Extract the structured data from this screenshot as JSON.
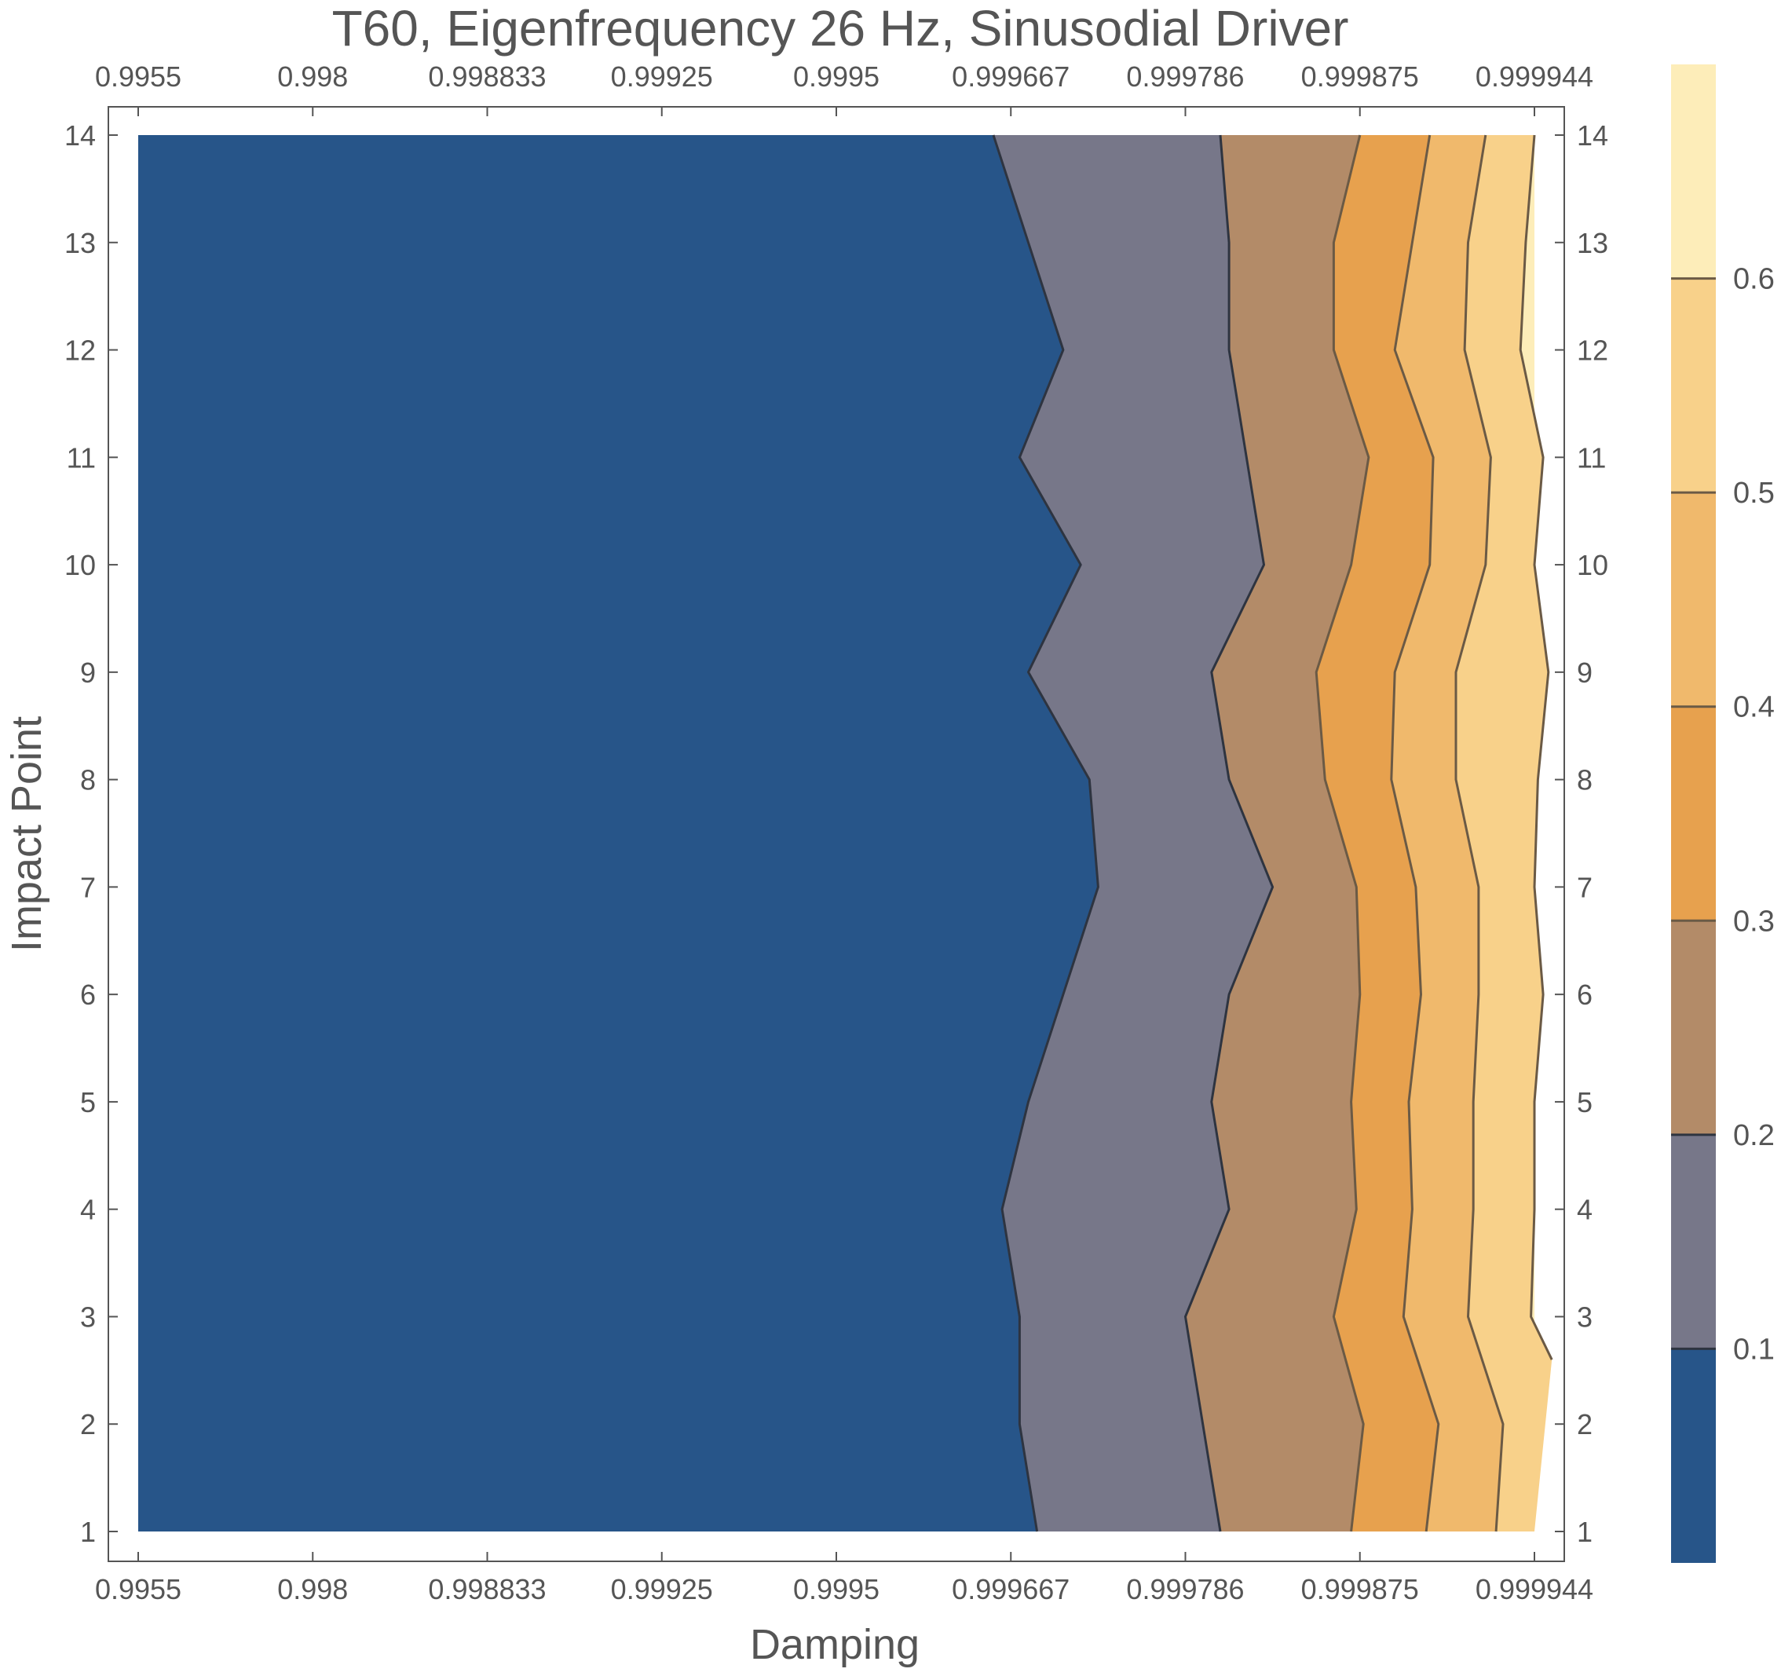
{
  "chart_data": {
    "type": "contour",
    "title": "T60, Eigenfrequency 26 Hz, Sinusodial Driver",
    "xlabel": "Damping",
    "ylabel": "Impact Point",
    "x_ticks": [
      "0.9955",
      "0.998",
      "0.998833",
      "0.99925",
      "0.9995",
      "0.999667",
      "0.999786",
      "0.999875",
      "0.999944"
    ],
    "y_ticks": [
      "1",
      "2",
      "3",
      "4",
      "5",
      "6",
      "7",
      "8",
      "9",
      "10",
      "11",
      "12",
      "13",
      "14"
    ],
    "x_range_index": [
      0,
      8
    ],
    "y_range": [
      1,
      14
    ],
    "contour_levels": [
      0.1,
      0.2,
      0.3,
      0.4,
      0.5,
      0.6
    ],
    "colorbar": {
      "range": [
        0.0,
        0.7
      ],
      "labels": [
        "0.1",
        "0.2",
        "0.3",
        "0.4",
        "0.5",
        "0.6"
      ],
      "colors": [
        "#275589",
        "#777789",
        "#b38b68",
        "#e7a14e",
        "#f0b96c",
        "#f8d18a",
        "#fdedb9"
      ]
    },
    "contour_lines": [
      {
        "level": 0.1,
        "points": [
          [
            4.9,
            14
          ],
          [
            5.1,
            13
          ],
          [
            5.3,
            12
          ],
          [
            5.05,
            11
          ],
          [
            5.4,
            10
          ],
          [
            5.1,
            9
          ],
          [
            5.45,
            8
          ],
          [
            5.5,
            7
          ],
          [
            5.3,
            6
          ],
          [
            5.1,
            5
          ],
          [
            4.95,
            4
          ],
          [
            5.05,
            3
          ],
          [
            5.05,
            2
          ],
          [
            5.15,
            1
          ]
        ]
      },
      {
        "level": 0.2,
        "points": [
          [
            6.2,
            14
          ],
          [
            6.25,
            13
          ],
          [
            6.25,
            12
          ],
          [
            6.35,
            11
          ],
          [
            6.45,
            10
          ],
          [
            6.15,
            9
          ],
          [
            6.25,
            8
          ],
          [
            6.5,
            7
          ],
          [
            6.25,
            6
          ],
          [
            6.15,
            5
          ],
          [
            6.25,
            4
          ],
          [
            6.0,
            3
          ],
          [
            6.1,
            2
          ],
          [
            6.2,
            1
          ]
        ]
      },
      {
        "level": 0.3,
        "points": [
          [
            7.0,
            14
          ],
          [
            6.85,
            13
          ],
          [
            6.85,
            12
          ],
          [
            7.05,
            11
          ],
          [
            6.95,
            10
          ],
          [
            6.75,
            9
          ],
          [
            6.8,
            8
          ],
          [
            6.98,
            7
          ],
          [
            7.0,
            6
          ],
          [
            6.95,
            5
          ],
          [
            6.98,
            4
          ],
          [
            6.85,
            3
          ],
          [
            7.02,
            2
          ],
          [
            6.95,
            1
          ]
        ]
      },
      {
        "level": 0.4,
        "points": [
          [
            7.4,
            14
          ],
          [
            7.3,
            13
          ],
          [
            7.2,
            12
          ],
          [
            7.42,
            11
          ],
          [
            7.4,
            10
          ],
          [
            7.2,
            9
          ],
          [
            7.18,
            8
          ],
          [
            7.32,
            7
          ],
          [
            7.35,
            6
          ],
          [
            7.28,
            5
          ],
          [
            7.3,
            4
          ],
          [
            7.25,
            3
          ],
          [
            7.45,
            2
          ],
          [
            7.38,
            1
          ]
        ]
      },
      {
        "level": 0.5,
        "points": [
          [
            7.72,
            14
          ],
          [
            7.62,
            13
          ],
          [
            7.6,
            12
          ],
          [
            7.75,
            11
          ],
          [
            7.72,
            10
          ],
          [
            7.55,
            9
          ],
          [
            7.55,
            8
          ],
          [
            7.68,
            7
          ],
          [
            7.68,
            6
          ],
          [
            7.65,
            5
          ],
          [
            7.65,
            4
          ],
          [
            7.62,
            3
          ],
          [
            7.82,
            2
          ],
          [
            7.78,
            1
          ]
        ]
      },
      {
        "level": 0.6,
        "points": [
          [
            8.0,
            14
          ],
          [
            7.95,
            13
          ],
          [
            7.92,
            12
          ],
          [
            8.05,
            11
          ],
          [
            8.0,
            10
          ],
          [
            8.08,
            9
          ],
          [
            8.02,
            8
          ],
          [
            8.0,
            7
          ],
          [
            8.05,
            6
          ],
          [
            8.0,
            5
          ],
          [
            8.0,
            4
          ],
          [
            7.98,
            3
          ],
          [
            8.1,
            2.6
          ]
        ]
      }
    ]
  }
}
